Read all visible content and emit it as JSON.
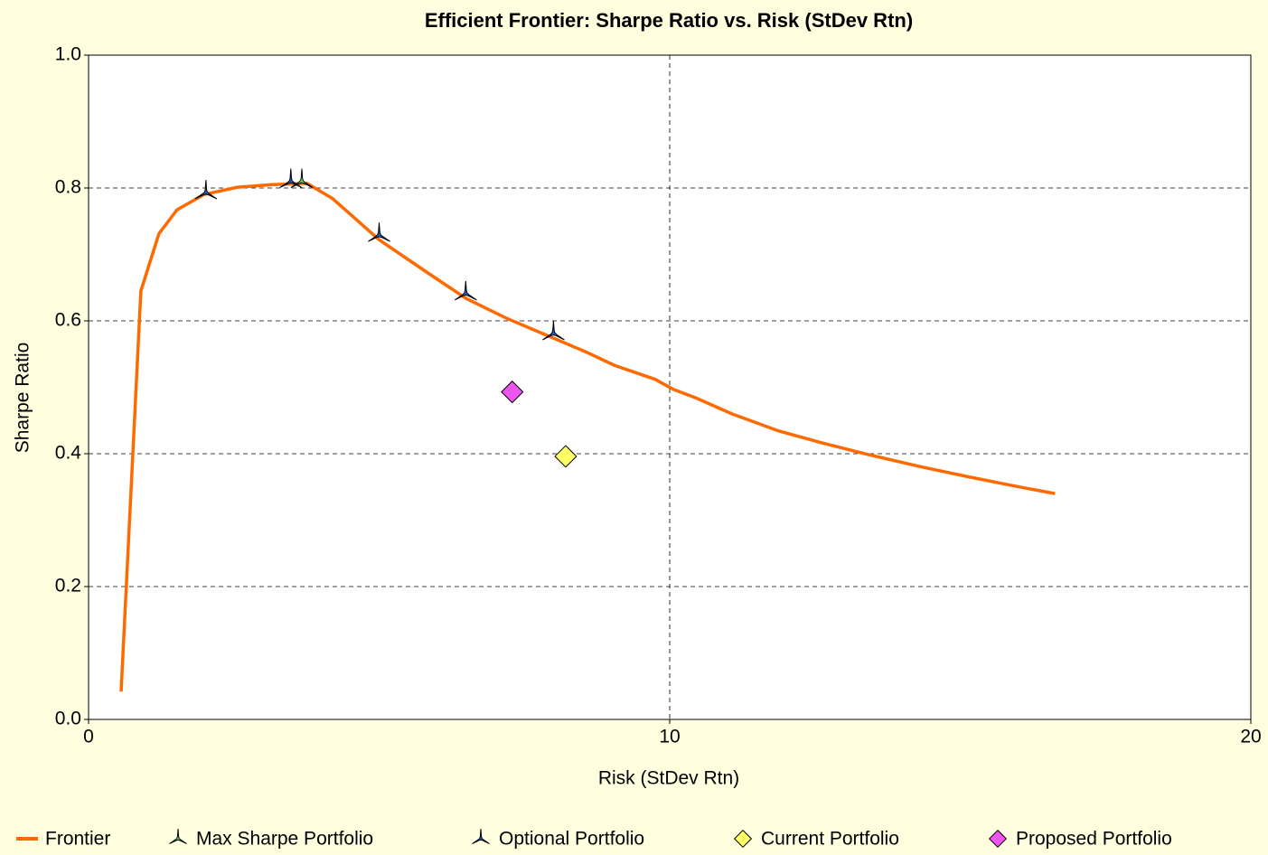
{
  "chart_data": {
    "type": "line",
    "title": "Efficient Frontier: Sharpe Ratio vs. Risk (StDev Rtn)",
    "x_label": "Risk (StDev Rtn)",
    "y_label": "Sharpe Ratio",
    "xlim": [
      0,
      20
    ],
    "ylim": [
      0,
      1
    ],
    "xticks": [
      0,
      10,
      20
    ],
    "yticks": [
      {
        "value": 0,
        "label": "0.0"
      },
      0.2,
      0.4,
      0.6,
      0.8,
      {
        "value": 1,
        "label": "1.0"
      }
    ],
    "grid": true,
    "legend": "bottom",
    "series": [
      {
        "name": "Frontier",
        "color": "#ff6a00",
        "kind": "line",
        "x": [
          0.56,
          0.9,
          1.21,
          1.52,
          1.98,
          2.55,
          3.14,
          3.76,
          4.2,
          5.0,
          5.79,
          6.49,
          7.19,
          8.0,
          8.59,
          9.05,
          9.75,
          10.06,
          10.45,
          11.07,
          11.85,
          12.63,
          13.4,
          14.34,
          15.1,
          15.9,
          16.63
        ],
        "values": [
          0.042,
          0.645,
          0.731,
          0.767,
          0.79,
          0.801,
          0.805,
          0.807,
          0.784,
          0.722,
          0.675,
          0.634,
          0.604,
          0.574,
          0.552,
          0.533,
          0.512,
          0.497,
          0.484,
          0.46,
          0.435,
          0.416,
          0.399,
          0.38,
          0.366,
          0.352,
          0.34
        ]
      },
      {
        "name": "Max Sharpe Portfolio",
        "color": "#66dd66",
        "kind": "scatter",
        "marker": "star",
        "x": [
          3.67
        ],
        "values": [
          0.81
        ]
      },
      {
        "name": "Optional Portfolio",
        "color": "#1e5fd0",
        "kind": "scatter",
        "marker": "star",
        "x": [
          2.02,
          3.48,
          5.0,
          6.49,
          8.0
        ],
        "values": [
          0.793,
          0.81,
          0.729,
          0.641,
          0.581
        ]
      },
      {
        "name": "Current Portfolio",
        "color": "#ffff66",
        "kind": "scatter",
        "marker": "diamond",
        "x": [
          8.21
        ],
        "values": [
          0.396
        ]
      },
      {
        "name": "Proposed Portfolio",
        "color": "#ee55ee",
        "kind": "scatter",
        "marker": "diamond",
        "x": [
          7.29
        ],
        "values": [
          0.493
        ]
      }
    ]
  }
}
